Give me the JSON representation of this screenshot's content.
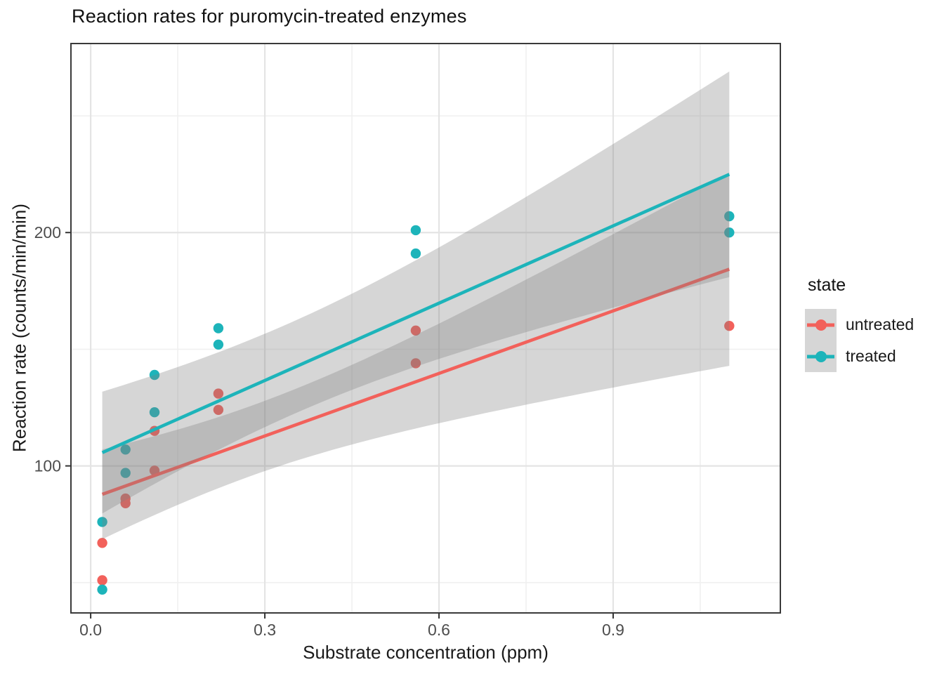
{
  "chart_data": {
    "type": "scatter",
    "title": "Reaction rates for puromycin-treated enzymes",
    "xlabel": "Substrate concentration (ppm)",
    "ylabel": "Reaction rate (counts/min/min)",
    "xlim": [
      -0.034,
      1.188
    ],
    "ylim": [
      37,
      281
    ],
    "x_major_ticks": [
      0.0,
      0.3,
      0.6,
      0.9
    ],
    "x_minor_gridlines": [
      0.15,
      0.45,
      0.75,
      1.05
    ],
    "y_major_ticks": [
      100,
      200
    ],
    "y_minor_gridlines": [
      50,
      150,
      250
    ],
    "grid": "major and minor light-gray gridlines on white panel with dark border",
    "legend_position": "right",
    "smooth": {
      "method": "lm",
      "ci_level": 0.95,
      "ribbon_fill": "#7F7F7F",
      "ribbon_alpha": 0.32
    },
    "series": [
      {
        "name": "untreated",
        "color": "#F2615B",
        "x": [
          0.02,
          0.02,
          0.06,
          0.06,
          0.11,
          0.11,
          0.22,
          0.22,
          0.56,
          0.56,
          1.1
        ],
        "y": [
          67,
          51,
          84,
          86,
          98,
          115,
          131,
          124,
          144,
          158,
          160
        ]
      },
      {
        "name": "treated",
        "color": "#1DB4BA",
        "x": [
          0.02,
          0.02,
          0.06,
          0.06,
          0.11,
          0.11,
          0.22,
          0.22,
          0.56,
          0.56,
          1.1,
          1.1
        ],
        "y": [
          76,
          47,
          97,
          107,
          123,
          139,
          159,
          152,
          191,
          201,
          207,
          200
        ]
      }
    ]
  },
  "legend": {
    "title": "state",
    "items": [
      {
        "label": "untreated"
      },
      {
        "label": "treated"
      }
    ]
  }
}
